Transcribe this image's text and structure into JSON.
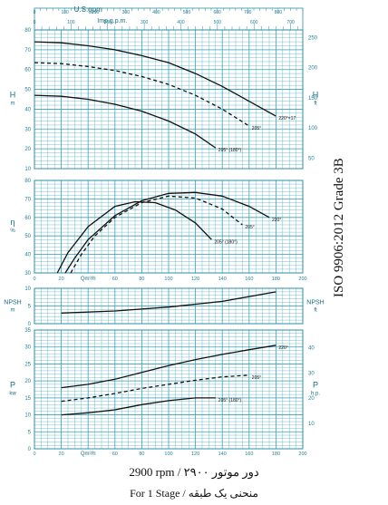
{
  "chart_data": [
    {
      "type": "line",
      "panel": "head",
      "y_label": "H",
      "y_unit": "m",
      "y_right_label": "H",
      "y_right_unit": "ft",
      "x_top_us_label": "U.S.gpm",
      "x_top_imp_label": "Imp.g.p.m.",
      "x_us_ticks": [
        0,
        100,
        200,
        300,
        400,
        500,
        600,
        700,
        800
      ],
      "x_imp_ticks": [
        0,
        100,
        200,
        300,
        400,
        500,
        600,
        700
      ],
      "y_ticks": [
        10,
        20,
        30,
        40,
        50,
        60,
        70,
        80
      ],
      "y_right_ticks": [
        50,
        100,
        150,
        200,
        250
      ],
      "ylim": [
        10,
        80
      ],
      "xlim": [
        0,
        200
      ],
      "grid": true,
      "series": [
        {
          "name": "220°×17",
          "style": "solid",
          "x": [
            0,
            20,
            40,
            60,
            80,
            100,
            120,
            140,
            160,
            180
          ],
          "y": [
            74,
            73.5,
            72,
            70,
            67,
            63.5,
            58,
            51.5,
            44,
            36.5
          ]
        },
        {
          "name": "205°",
          "style": "dashed",
          "x": [
            0,
            20,
            40,
            60,
            80,
            100,
            120,
            140,
            160
          ],
          "y": [
            63.5,
            63,
            61.5,
            59.5,
            56.5,
            52.5,
            47,
            40,
            31.5
          ]
        },
        {
          "name": "205° (180°)",
          "style": "solid",
          "x": [
            0,
            20,
            40,
            60,
            80,
            100,
            120,
            135
          ],
          "y": [
            47,
            46.5,
            45,
            42.5,
            39,
            34,
            27.5,
            20.5
          ]
        }
      ]
    },
    {
      "type": "line",
      "panel": "efficiency",
      "y_label": "η",
      "y_unit": "%",
      "y_ticks": [
        30,
        40,
        50,
        60,
        70,
        80
      ],
      "ylim": [
        30,
        80
      ],
      "xlim": [
        0,
        200
      ],
      "grid": true,
      "series": [
        {
          "name": "220°",
          "style": "solid",
          "x": [
            23,
            30,
            40,
            60,
            80,
            100,
            120,
            140,
            160,
            175
          ],
          "y": [
            30,
            38,
            48,
            61,
            69,
            73,
            73.5,
            71.5,
            66,
            60
          ]
        },
        {
          "name": "205°",
          "style": "dashed",
          "x": [
            27,
            35,
            45,
            60,
            80,
            100,
            120,
            140,
            155
          ],
          "y": [
            30,
            40,
            50,
            60,
            68,
            71.5,
            70.5,
            64.5,
            56
          ]
        },
        {
          "name": "205° (180°)",
          "style": "solid",
          "x": [
            17,
            25,
            40,
            60,
            75,
            90,
            105,
            120,
            132
          ],
          "y": [
            30,
            41,
            55,
            66,
            68.5,
            68,
            64,
            57,
            48
          ]
        }
      ]
    },
    {
      "type": "line",
      "panel": "npsh",
      "y_label": "NPSH",
      "y_unit": "m",
      "y_right_label": "NPSH",
      "y_right_unit": "ft",
      "y_ticks": [
        0,
        5,
        10
      ],
      "ylim": [
        0,
        10
      ],
      "xlim": [
        0,
        200
      ],
      "grid": true,
      "series": [
        {
          "name": "NPSH",
          "style": "solid",
          "x": [
            20,
            60,
            100,
            140,
            180
          ],
          "y": [
            3,
            3.6,
            4.7,
            6.3,
            9
          ]
        }
      ]
    },
    {
      "type": "line",
      "panel": "power",
      "y_label": "P",
      "y_unit": "kw",
      "y_right_label": "P",
      "y_right_unit": "h.p.",
      "x_label": "Qm³/h",
      "x_ticks": [
        0,
        20,
        40,
        60,
        80,
        100,
        120,
        140,
        160,
        180,
        200
      ],
      "y_ticks": [
        0,
        5,
        10,
        15,
        20,
        25,
        30,
        35
      ],
      "y_right_ticks": [
        10,
        20,
        30,
        40
      ],
      "ylim": [
        0,
        35
      ],
      "xlim": [
        0,
        200
      ],
      "grid": true,
      "series": [
        {
          "name": "220°",
          "style": "solid",
          "x": [
            20,
            40,
            60,
            80,
            100,
            120,
            140,
            160,
            180
          ],
          "y": [
            18,
            19,
            20.5,
            22.5,
            24.5,
            26.3,
            27.8,
            29.2,
            30.5
          ]
        },
        {
          "name": "205°",
          "style": "dashed",
          "x": [
            20,
            40,
            60,
            80,
            100,
            120,
            140,
            160
          ],
          "y": [
            14,
            15,
            16.3,
            17.8,
            19,
            20.2,
            21.2,
            21.7
          ]
        },
        {
          "name": "205° (180°)",
          "style": "solid",
          "x": [
            20,
            40,
            60,
            80,
            100,
            120,
            135
          ],
          "y": [
            10,
            10.6,
            11.5,
            13,
            14.2,
            15,
            15
          ]
        }
      ]
    }
  ],
  "labels": {
    "mid_q_label": "Qm³/h",
    "footer_line1": "2900 rpm / ۲۹۰۰ دور موتور",
    "footer_line2": "For 1 Stage / منحنی یک طبقه",
    "side_text": "ISO 9906:2012 Grade 3B"
  },
  "colors": {
    "grid": "#3aa3b9",
    "frame": "#2b8fa6",
    "curve": "#111111",
    "axis_text": "#1e7f96"
  }
}
